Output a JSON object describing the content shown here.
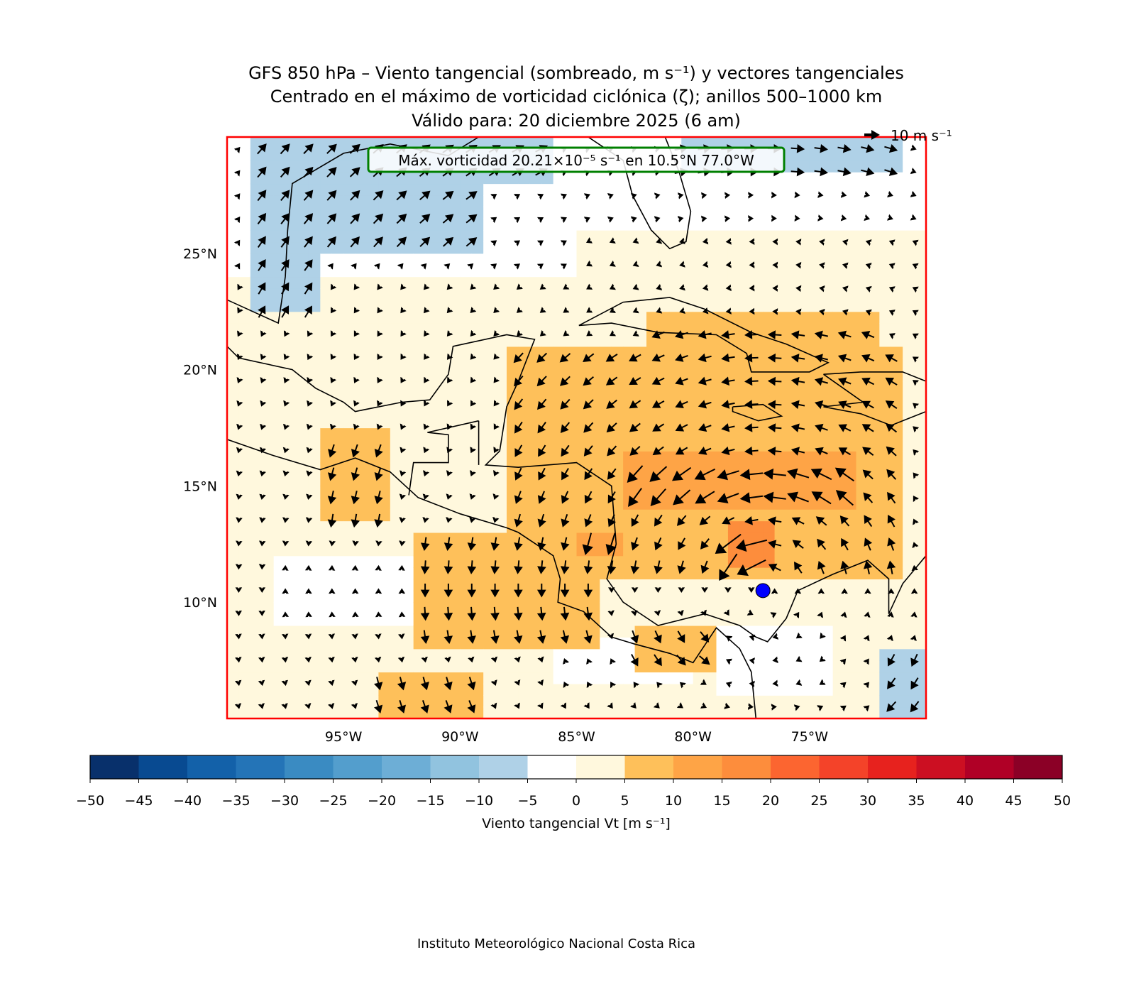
{
  "chart_data": {
    "type": "heatmap",
    "title_lines": [
      "GFS 850 hPa – Viento tangencial (sombreado, m s⁻¹) y vectores tangenciales",
      "Centrado en el máximo de vorticidad ciclónica (ζ); anillos 500–1000 km",
      "Válido para: 20 diciembre 2025 (6 am)"
    ],
    "annotation": "Máx. vorticidad 20.21×10⁻⁵ s⁻¹ en 10.5°N 77.0°W",
    "quiver_key": "10 m s⁻¹",
    "quiver_key_value": 10,
    "lon_range": [
      -100,
      -70
    ],
    "lat_range": [
      5,
      30
    ],
    "xticks": [
      {
        "v": -95,
        "label": "95°W"
      },
      {
        "v": -90,
        "label": "90°W"
      },
      {
        "v": -85,
        "label": "85°W"
      },
      {
        "v": -80,
        "label": "80°W"
      },
      {
        "v": -75,
        "label": "75°W"
      }
    ],
    "yticks": [
      {
        "v": 25,
        "label": "25°N"
      },
      {
        "v": 20,
        "label": "20°N"
      },
      {
        "v": 15,
        "label": "15°N"
      },
      {
        "v": 10,
        "label": "10°N"
      }
    ],
    "center": {
      "lat": 10.5,
      "lon": -77.0,
      "color": "#0000ff"
    },
    "colorbar": {
      "label": "Viento tangencial Vt [m s⁻¹]",
      "bounds": [
        -50,
        -45,
        -40,
        -35,
        -30,
        -25,
        -20,
        -15,
        -10,
        -5,
        0,
        5,
        10,
        15,
        20,
        25,
        30,
        35,
        40,
        45,
        50
      ],
      "colors": [
        "#08306b",
        "#084a91",
        "#1361a9",
        "#2474b7",
        "#3a8bc2",
        "#539ecd",
        "#6daed6",
        "#91c3df",
        "#afd1e7",
        "#ffffff",
        "#fff8dd",
        "#fec05a",
        "#fea446",
        "#fd8d3c",
        "#fc6530",
        "#f44329",
        "#e7221e",
        "#cc0f22",
        "#b00026",
        "#8b0026"
      ]
    },
    "vt_regions": [
      {
        "lon": [
          -100,
          -70
        ],
        "lat": [
          5,
          24
        ],
        "vt": 2.5
      },
      {
        "lon": [
          -85,
          -70
        ],
        "lat": [
          24,
          26
        ],
        "vt": 2.5
      },
      {
        "lon": [
          -98,
          -90
        ],
        "lat": [
          9,
          12
        ],
        "vt": -2.5
      },
      {
        "lon": [
          -86,
          -80
        ],
        "lat": [
          6.5,
          8.5
        ],
        "vt": -2.5
      },
      {
        "lon": [
          -79,
          -74
        ],
        "lat": [
          6,
          9
        ],
        "vt": -2.5
      },
      {
        "lon": [
          -99,
          -89
        ],
        "lat": [
          25,
          30
        ],
        "vt": -7.5
      },
      {
        "lon": [
          -99,
          -96
        ],
        "lat": [
          22.5,
          25
        ],
        "vt": -7.5
      },
      {
        "lon": [
          -89,
          -86
        ],
        "lat": [
          28,
          30
        ],
        "vt": -7.5
      },
      {
        "lon": [
          -80.5,
          -71
        ],
        "lat": [
          28.5,
          30
        ],
        "vt": -7.5
      },
      {
        "lon": [
          -72,
          -70
        ],
        "lat": [
          5,
          8
        ],
        "vt": -7.5
      },
      {
        "lon": [
          -88,
          -71
        ],
        "lat": [
          11,
          21
        ],
        "vt": 7.5
      },
      {
        "lon": [
          -82,
          -72
        ],
        "lat": [
          19,
          22.5
        ],
        "vt": 7.5
      },
      {
        "lon": [
          -92,
          -84
        ],
        "lat": [
          8,
          13
        ],
        "vt": 7.5
      },
      {
        "lon": [
          -96,
          -93
        ],
        "lat": [
          13.5,
          17.5
        ],
        "vt": 7.5
      },
      {
        "lon": [
          -93.5,
          -89
        ],
        "lat": [
          5,
          6.8
        ],
        "vt": 7.5
      },
      {
        "lon": [
          -82.5,
          -79
        ],
        "lat": [
          7,
          9
        ],
        "vt": 7.5
      },
      {
        "lon": [
          -83,
          -73
        ],
        "lat": [
          14,
          16.5
        ],
        "vt": 12.5
      },
      {
        "lon": [
          -85,
          -83
        ],
        "lat": [
          12,
          13
        ],
        "vt": 12.5
      },
      {
        "lon": [
          -78.5,
          -76.5
        ],
        "lat": [
          11.5,
          13.5
        ],
        "vt": 17.5
      }
    ],
    "footer": "Instituto Meteorológico Nacional Costa Rica"
  }
}
